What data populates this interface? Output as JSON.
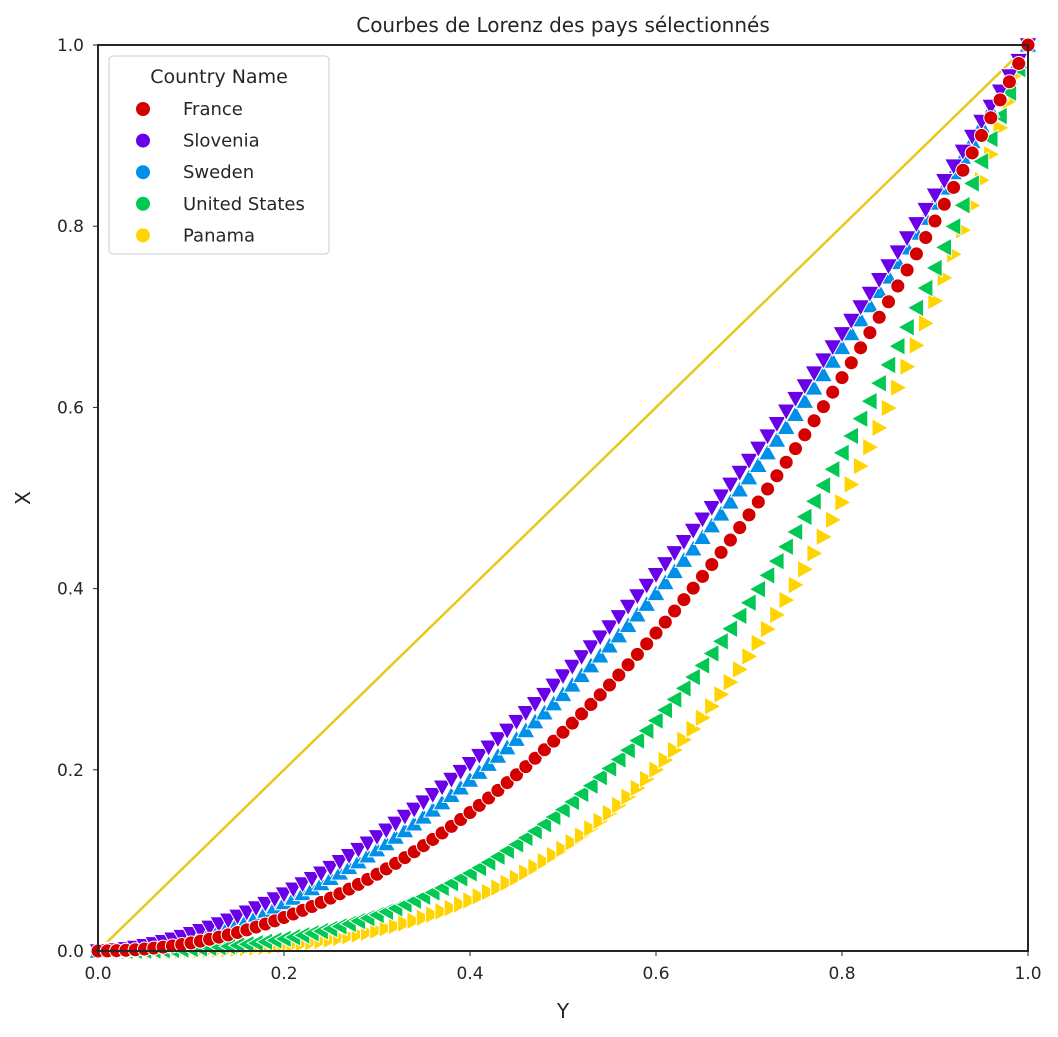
{
  "chart_data": {
    "type": "scatter",
    "title": "Courbes de Lorenz des pays sélectionnés",
    "xlabel": "Y",
    "ylabel": "X",
    "xlim": [
      0,
      1
    ],
    "ylim": [
      0,
      1
    ],
    "xticks": [
      "0.0",
      "0.2",
      "0.4",
      "0.6",
      "0.8",
      "1.0"
    ],
    "yticks": [
      "0.0",
      "0.2",
      "0.4",
      "0.6",
      "0.8",
      "1.0"
    ],
    "grid": false,
    "legend": {
      "title": "Country Name",
      "placement": "top-left"
    },
    "equality_line": {
      "x": [
        0,
        1
      ],
      "y": [
        0,
        1
      ],
      "color": "#e8c81a"
    },
    "series": [
      {
        "name": "France",
        "color": "#d40000",
        "marker": "circle",
        "lorenz_exponent": 2.05
      },
      {
        "name": "Slovenia",
        "color": "#6a00e8",
        "marker": "triangle-down",
        "lorenz_exponent": 1.72
      },
      {
        "name": "Sweden",
        "color": "#0090e8",
        "marker": "triangle-up",
        "lorenz_exponent": 1.82
      },
      {
        "name": "United States",
        "color": "#00c853",
        "marker": "triangle-left",
        "lorenz_exponent": 2.68
      },
      {
        "name": "Panama",
        "color": "#ffd400",
        "marker": "triangle-right",
        "lorenz_exponent": 3.15
      }
    ]
  }
}
